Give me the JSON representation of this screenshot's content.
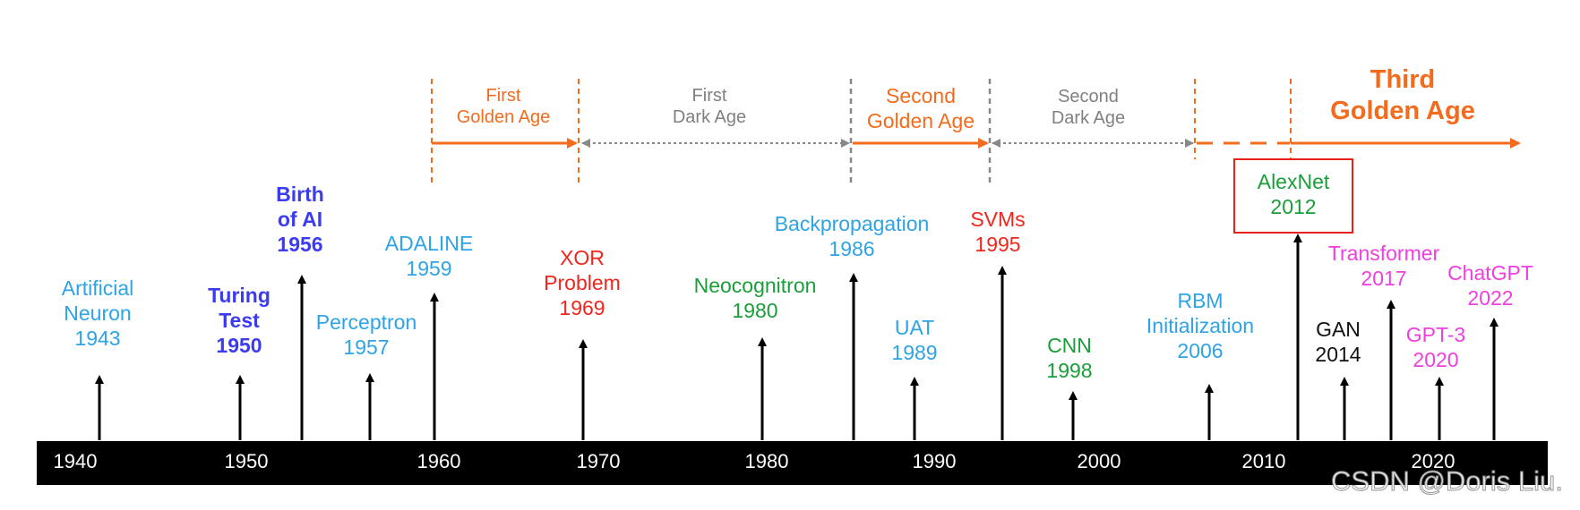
{
  "eras": {
    "first_golden": [
      "First",
      "Golden Age"
    ],
    "first_dark": [
      "First",
      "Dark Age"
    ],
    "second_golden": [
      "Second",
      "Golden Age"
    ],
    "second_dark": [
      "Second",
      "Dark Age"
    ],
    "third_golden": [
      "Third",
      "Golden Age"
    ]
  },
  "events": {
    "artificial_neuron": [
      "Artificial",
      "Neuron",
      "1943"
    ],
    "turing_test": [
      "Turing",
      "Test",
      "1950"
    ],
    "birth_of_ai": [
      "Birth",
      "of AI",
      "1956"
    ],
    "perceptron": [
      "Perceptron",
      "1957"
    ],
    "adaline": [
      "ADALINE",
      "1959"
    ],
    "xor_problem": [
      "XOR",
      "Problem",
      "1969"
    ],
    "neocognitron": [
      "Neocognitron",
      "1980"
    ],
    "backpropagation": [
      "Backpropagation",
      "1986"
    ],
    "uat": [
      "UAT",
      "1989"
    ],
    "svms": [
      "SVMs",
      "1995"
    ],
    "cnn": [
      "CNN",
      "1998"
    ],
    "rbm": [
      "RBM",
      "Initialization",
      "2006"
    ],
    "alexnet": [
      "AlexNet",
      "2012"
    ],
    "gan": [
      "GAN",
      "2014"
    ],
    "transformer": [
      "Transformer",
      "2017"
    ],
    "gpt3": [
      "GPT-3",
      "2020"
    ],
    "chatgpt": [
      "ChatGPT",
      "2022"
    ]
  },
  "axis": {
    "years": [
      "1940",
      "1950",
      "1960",
      "1970",
      "1980",
      "1990",
      "2000",
      "2010",
      "2020"
    ]
  },
  "watermark": "CSDN @Doris Liu.",
  "colors": {
    "orange": "#f36b1d",
    "gray": "#808080",
    "axis_bar": "#000000",
    "alexnet_box": "#e8201a"
  }
}
